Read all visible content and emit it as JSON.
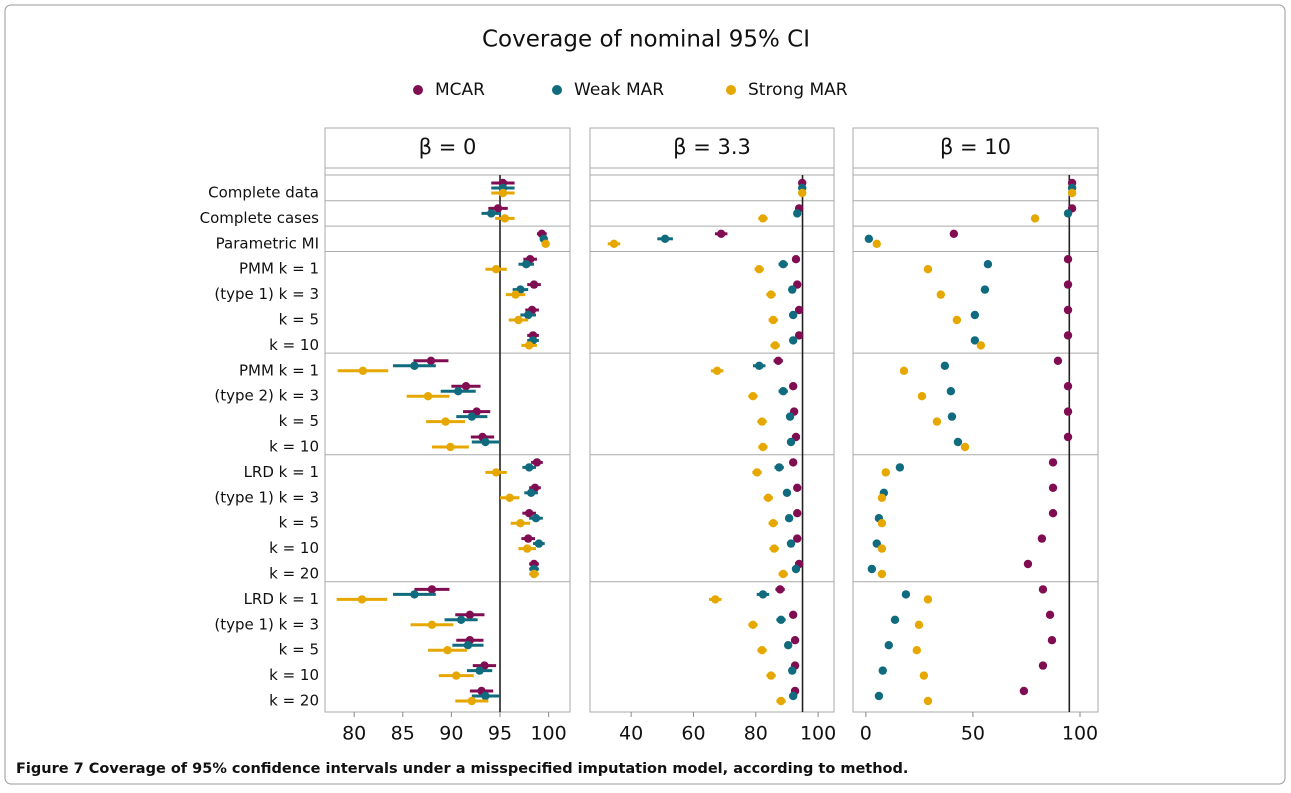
{
  "chart_data": {
    "type": "dot",
    "title": "Coverage of nominal 95% CI",
    "series": [
      {
        "name": "MCAR",
        "color": "#800d52"
      },
      {
        "name": "Weak MAR",
        "color": "#0f6b7d"
      },
      {
        "name": "Strong MAR",
        "color": "#e6a800"
      }
    ],
    "categories": [
      "Complete data",
      "Complete cases",
      "Parametric MI",
      "PMM   k = 1",
      "(type 1) k = 3",
      "k = 5",
      "k = 10",
      "PMM   k = 1",
      "(type 2) k = 3",
      "k = 5",
      "k = 10",
      "LRD   k = 1",
      "(type 1) k = 3",
      "k = 5",
      "k = 10",
      "k = 20",
      "LRD   k = 1",
      "(type 1) k = 3",
      "k = 5",
      "k = 10",
      "k = 20"
    ],
    "reference": 95,
    "panels": [
      {
        "title": "β = 0",
        "xlim": [
          77,
          102.2
        ],
        "xticks": [
          80,
          85,
          90,
          95,
          100
        ],
        "series": [
          {
            "values": [
              95.3,
              94.8,
              99.3,
              98.1,
              98.5,
              98.3,
              98.4,
              87.9,
              91.5,
              92.6,
              93.2,
              98.8,
              98.6,
              98.0,
              97.9,
              98.5,
              88.0,
              91.9,
              91.9,
              93.4,
              93.1
            ],
            "errors": [
              1.2,
              1,
              0.5,
              0.7,
              0.7,
              0.7,
              0.6,
              1.8,
              1.5,
              1.4,
              1.2,
              0.6,
              0.6,
              0.7,
              0.7,
              0.5,
              1.8,
              1.5,
              1.4,
              1.2,
              1.2
            ]
          },
          {
            "values": [
              95.3,
              94.1,
              99.5,
              97.7,
              97.1,
              97.9,
              98.4,
              86.2,
              90.7,
              92.1,
              93.5,
              98.0,
              98.2,
              98.7,
              99.0,
              98.5,
              86.2,
              91.0,
              91.7,
              92.9,
              93.5
            ],
            "errors": [
              1.2,
              1,
              0.4,
              0.8,
              0.8,
              0.8,
              0.6,
              2.2,
              1.8,
              1.6,
              1.4,
              0.7,
              0.7,
              0.7,
              0.6,
              0.5,
              2.2,
              1.7,
              1.6,
              1.3,
              1.4
            ]
          },
          {
            "values": [
              95.3,
              95.5,
              99.7,
              94.6,
              96.6,
              96.9,
              98.0,
              80.9,
              87.6,
              89.4,
              89.9,
              94.6,
              96.0,
              97.1,
              97.8,
              98.5,
              80.8,
              88.0,
              89.6,
              90.5,
              92.1
            ],
            "errors": [
              1.2,
              1,
              0.4,
              1.1,
              1,
              1,
              0.8,
              2.6,
              2.2,
              2,
              1.9,
              1.1,
              1,
              1,
              0.9,
              0.5,
              2.6,
              2.2,
              2,
              1.8,
              1.7
            ]
          }
        ]
      },
      {
        "title": "β = 3.3",
        "xlim": [
          26.8,
          105.1
        ],
        "xticks": [
          40,
          60,
          80,
          100
        ],
        "series": [
          {
            "values": [
              94.9,
              93.9,
              68.9,
              92.9,
              93.3,
              93.9,
              93.9,
              87.2,
              92.0,
              92.3,
              92.9,
              92.0,
              93.3,
              93.3,
              93.3,
              93.9,
              87.8,
              92.0,
              92.6,
              92.6,
              92.6
            ],
            "errors": [
              0.5,
              1,
              2,
              1,
              1,
              1,
              1,
              1.5,
              1,
              1,
              1,
              1,
              1,
              1,
              1,
              1,
              1.5,
              1,
              1,
              1,
              1
            ]
          },
          {
            "values": [
              94.9,
              93.3,
              50.9,
              88.8,
              91.7,
              92.0,
              92.0,
              81.1,
              88.8,
              91.0,
              91.3,
              87.5,
              90.0,
              90.7,
              91.3,
              92.9,
              82.3,
              88.1,
              90.4,
              91.7,
              92.0
            ],
            "errors": [
              0.5,
              1,
              2.5,
              1.5,
              1.2,
              1.2,
              1.2,
              2,
              1.5,
              1.2,
              1.2,
              1.5,
              1.2,
              1.2,
              1.2,
              1,
              2,
              1.5,
              1.2,
              1.2,
              1.2
            ]
          },
          {
            "values": [
              94.9,
              82.3,
              34.5,
              81.1,
              84.9,
              85.6,
              86.2,
              67.6,
              79.1,
              82.0,
              82.3,
              80.4,
              84.0,
              85.6,
              85.9,
              88.8,
              67.0,
              79.1,
              82.0,
              84.9,
              88.1
            ],
            "errors": [
              0.5,
              1.5,
              2,
              1.5,
              1.5,
              1.5,
              1.5,
              2,
              1.5,
              1.5,
              1.5,
              1.5,
              1.5,
              1.5,
              1.5,
              1.5,
              2,
              1.5,
              1.5,
              1.5,
              1.5
            ]
          }
        ]
      },
      {
        "title": "β = 10",
        "xlim": [
          -6,
          108.4
        ],
        "xticks": [
          0,
          50,
          100
        ],
        "series": [
          {
            "values": [
              96.3,
              96.3,
              41.1,
              94.4,
              94.4,
              94.4,
              94.4,
              89.7,
              94.4,
              94.4,
              94.4,
              87.4,
              87.4,
              87.4,
              82.2,
              75.7,
              82.7,
              86.0,
              86.9,
              82.7,
              73.8
            ],
            "errors": [
              1,
              1,
              1.5,
              1,
              1,
              1,
              1,
              1,
              1,
              1,
              1,
              1,
              1,
              1,
              1,
              1,
              1,
              1,
              1,
              1,
              1
            ]
          },
          {
            "values": [
              96.3,
              94.4,
              1.4,
              57.0,
              55.6,
              50.9,
              50.9,
              36.9,
              39.7,
              40.2,
              43.0,
              15.9,
              8.4,
              6.1,
              5.1,
              2.8,
              18.7,
              13.6,
              10.7,
              7.9,
              6.1
            ],
            "errors": [
              1,
              1,
              1.5,
              1.5,
              1.5,
              1.5,
              1.5,
              1.5,
              1.5,
              1.5,
              1.5,
              1.5,
              1.5,
              1.5,
              1.5,
              1.5,
              1.5,
              1.5,
              1.5,
              1.5,
              1.5
            ]
          },
          {
            "values": [
              96.3,
              79.0,
              5.1,
              29.0,
              35.0,
              42.5,
              53.7,
              17.8,
              26.2,
              33.2,
              46.3,
              9.3,
              7.5,
              7.5,
              7.5,
              7.5,
              29.0,
              24.8,
              23.8,
              27.1,
              29.0
            ],
            "errors": [
              1,
              1.5,
              1.5,
              1.5,
              1.5,
              1.5,
              1.5,
              1.5,
              1.5,
              1.5,
              1.5,
              1.5,
              1.5,
              1.5,
              1.5,
              1.5,
              1.5,
              1.5,
              1.5,
              1.5,
              1.5
            ]
          }
        ]
      }
    ]
  },
  "caption": "Figure 7 Coverage of 95% confidence intervals under a misspecified imputation model, according to method."
}
